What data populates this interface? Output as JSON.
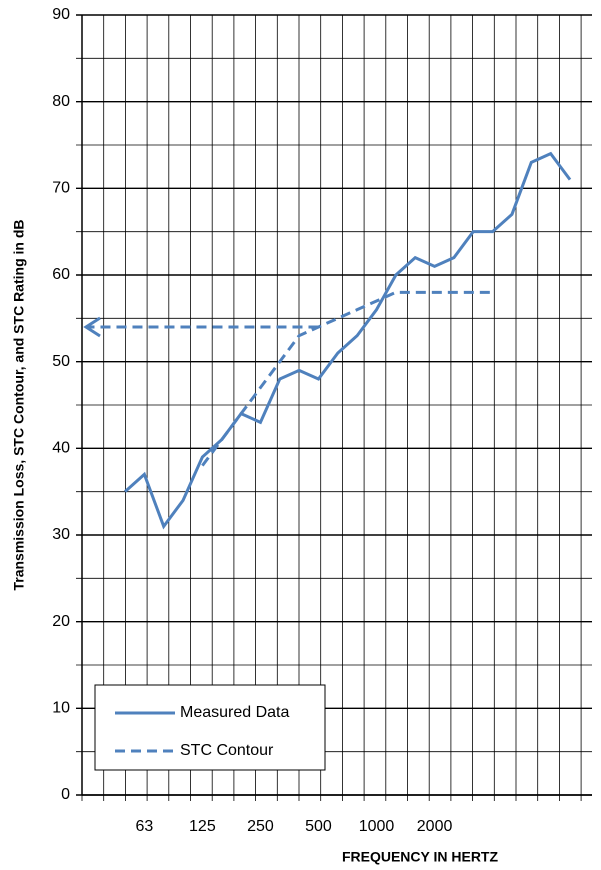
{
  "chart_data": {
    "type": "line",
    "y_label": "Transmission Loss, STC Contour, and STC Rating in dB",
    "x_label": "FREQUENCY IN HERTZ",
    "categories": [
      null,
      "63",
      null,
      null,
      "125",
      null,
      null,
      "250",
      null,
      null,
      "500",
      null,
      null,
      "1000",
      null,
      null,
      "2000",
      null,
      null,
      null,
      null,
      null,
      null,
      null
    ],
    "series": [
      {
        "name": "Measured Data",
        "color": "#4f81bd",
        "dash": false,
        "values": [
          35,
          37,
          31,
          34,
          39,
          41,
          44,
          43,
          48,
          49,
          48,
          51,
          53,
          56,
          60,
          62,
          61,
          62,
          65,
          65,
          67,
          73,
          74,
          71
        ]
      },
      {
        "name": "STC Contour",
        "color": "#4f81bd",
        "dash": true,
        "values": [
          null,
          null,
          null,
          null,
          38,
          41,
          44,
          47,
          50,
          53,
          54,
          55,
          56,
          57,
          58,
          58,
          58,
          58,
          58,
          58,
          null,
          null,
          null,
          null
        ]
      }
    ],
    "ylim": [
      0,
      90
    ],
    "yticks": [
      0,
      10,
      20,
      30,
      40,
      50,
      60,
      70,
      80,
      90
    ],
    "grid": true
  }
}
